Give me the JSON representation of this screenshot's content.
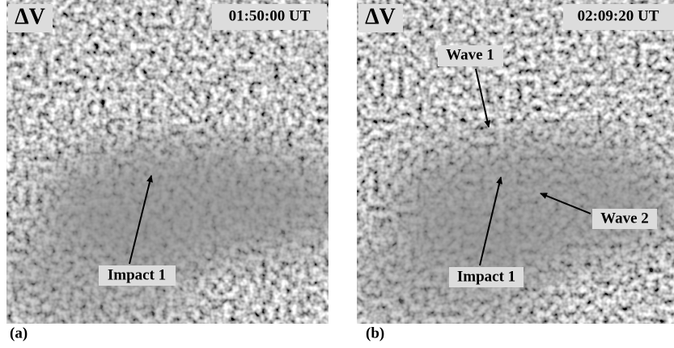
{
  "panels": [
    {
      "quantity": "ΔV",
      "time": "01:50:00 UT",
      "annotations": [
        "Impact 1"
      ],
      "caption": "(a)"
    },
    {
      "quantity": "ΔV",
      "time": "02:09:20 UT",
      "annotations": [
        "Wave 1",
        "Wave 2",
        "Impact 1"
      ],
      "caption": "(b)"
    }
  ]
}
